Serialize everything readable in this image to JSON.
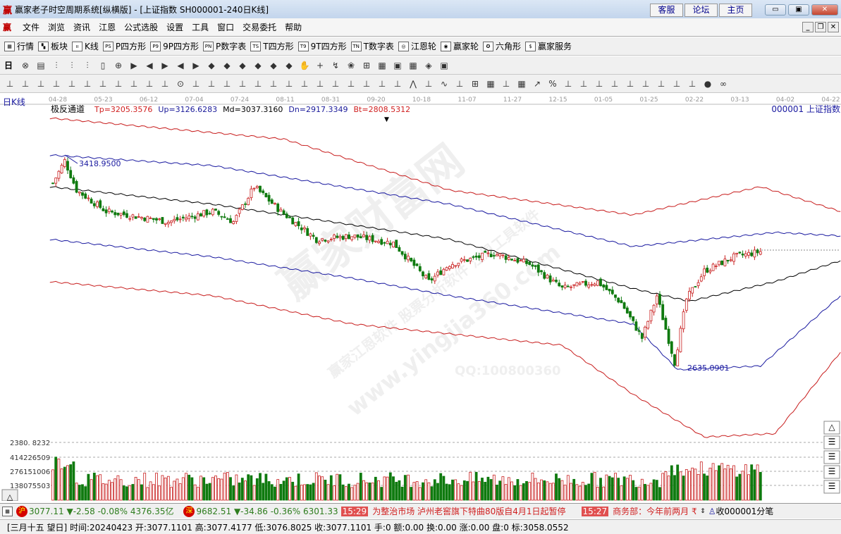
{
  "window": {
    "logo": "赢",
    "title": "赢家老子时空周期系统[纵横版] - [上证指数  SH000001-240日K线]",
    "links": [
      "客服",
      "论坛",
      "主页"
    ],
    "controls": [
      "min",
      "max",
      "close"
    ]
  },
  "menu": {
    "logo": "赢",
    "items": [
      "文件",
      "浏览",
      "资讯",
      "江恩",
      "公式选股",
      "设置",
      "工具",
      "窗口",
      "交易委托",
      "帮助"
    ]
  },
  "toolbar1": [
    {
      "icon": "grid-icon",
      "glyph": "▦",
      "label": "行情"
    },
    {
      "icon": "blocks-icon",
      "glyph": "▚",
      "label": "板块"
    },
    {
      "icon": "candle-icon",
      "glyph": "ıı",
      "label": "K线"
    },
    {
      "icon": "ps-icon",
      "glyph": "PS",
      "label": "P四方形"
    },
    {
      "icon": "p9-icon",
      "glyph": "P9",
      "label": "9P四方形"
    },
    {
      "icon": "pn-icon",
      "glyph": "PN",
      "label": "P数字表"
    },
    {
      "icon": "ts-icon",
      "glyph": "TS",
      "label": "T四方形"
    },
    {
      "icon": "t9-icon",
      "glyph": "T9",
      "label": "9T四方形"
    },
    {
      "icon": "tn-icon",
      "glyph": "TN",
      "label": "T数字表"
    },
    {
      "icon": "gann-wheel-icon",
      "glyph": "◎",
      "label": "江恩轮"
    },
    {
      "icon": "yingjia-wheel-icon",
      "glyph": "◉",
      "label": "赢家轮"
    },
    {
      "icon": "hexagon-icon",
      "glyph": "✪",
      "label": "六角形"
    },
    {
      "icon": "dollar-icon",
      "glyph": "$",
      "label": "赢家服务"
    }
  ],
  "toolbar2": {
    "period": "日",
    "glyphs": [
      "⊗",
      "▤",
      "⫶",
      "⫶",
      "⫶",
      "▯",
      "⊕",
      "▶",
      "◀",
      "▶",
      "◀",
      "▶",
      "◆",
      "◆",
      "◆",
      "◆",
      "◆",
      "◆",
      "✋",
      "+",
      "↯",
      "❀",
      "⊞",
      "▦",
      "▣",
      "▦",
      "◈",
      "▣"
    ]
  },
  "toolbar3": {
    "glyphs": [
      "⊥",
      "⊥",
      "⊥",
      "⊥",
      "⊥",
      "⊥",
      "⊥",
      "⊥",
      "⊥",
      "⊥",
      "⊥",
      "⊙",
      "⊥",
      "⊥",
      "⊥",
      "⊥",
      "⊥",
      "⊥",
      "⊥",
      "⊥",
      "⊥",
      "⊥",
      "⊥",
      "⊥",
      "⊥",
      "⊥",
      "⋀",
      "⊥",
      "∿",
      "⊥",
      "⊞",
      "▦",
      "⊥",
      "▦",
      "↗",
      "%",
      "⊥",
      "⊥",
      "⊥",
      "⊥",
      "⊥",
      "⊥",
      "⊥",
      "⊥",
      "⊥",
      "●",
      "∞"
    ]
  },
  "chart": {
    "period_label": "日K线",
    "indicator_name": "极反通道",
    "indicator_values": [
      {
        "text": "Tp=3205.3576",
        "color": "#d02020"
      },
      {
        "text": "Up=3126.6283",
        "color": "#1a1a9a"
      },
      {
        "text": "Md=3037.3160",
        "color": "#000000"
      },
      {
        "text": "Dn=2917.3349",
        "color": "#1a1a9a"
      },
      {
        "text": "Bt=2808.5312",
        "color": "#d02020"
      }
    ],
    "symbol": "000001  上证指数",
    "date_ticks": [
      "04-28",
      "05-23",
      "06-12",
      "07-04",
      "07-24",
      "08-11",
      "08-31",
      "09-20",
      "10-18",
      "11-07",
      "11-27",
      "12-15",
      "01-05",
      "01-25",
      "02-22",
      "03-13",
      "04-02",
      "04-22"
    ],
    "high_label": "3418.9500",
    "low_label": "2635.0901",
    "volume_axis": [
      "2380. 8232",
      "414226509",
      "276151006",
      "138075503"
    ],
    "watermark": {
      "brand": "赢家财富网",
      "url": "www.yingjia360.com",
      "tagline": "赢家江恩软件 股票分析软件 江恩工具软件",
      "qq": "QQ:100800360"
    },
    "colors": {
      "up": "#c81e1e",
      "down": "#0f7a0f",
      "top": "#c81e1e",
      "upper": "#1a1aa0",
      "mid": "#000000"
    }
  },
  "chart_data": {
    "type": "candlestick",
    "bar_count": 240,
    "y_range": [
      2360,
      3600
    ],
    "close_path": [
      [
        0,
        3334
      ],
      [
        4,
        3419
      ],
      [
        8,
        3308
      ],
      [
        18,
        3228
      ],
      [
        39,
        3189
      ],
      [
        54,
        3228
      ],
      [
        61,
        3189
      ],
      [
        68,
        3321
      ],
      [
        77,
        3228
      ],
      [
        89,
        3123
      ],
      [
        101,
        3136
      ],
      [
        115,
        3109
      ],
      [
        127,
        2964
      ],
      [
        134,
        3030
      ],
      [
        149,
        3070
      ],
      [
        161,
        3030
      ],
      [
        172,
        2938
      ],
      [
        184,
        2964
      ],
      [
        192,
        2884
      ],
      [
        199,
        2752
      ],
      [
        204,
        2911
      ],
      [
        210,
        2660
      ],
      [
        214,
        2898
      ],
      [
        220,
        3004
      ],
      [
        230,
        3057
      ],
      [
        239,
        3077
      ]
    ],
    "bands": {
      "top": [
        [
          -1,
          3579
        ],
        [
          78,
          3500
        ],
        [
          134,
          3308
        ],
        [
          196,
          3215
        ],
        [
          239,
          3321
        ],
        [
          266,
          3228
        ]
      ],
      "upper": [
        [
          -1,
          3440
        ],
        [
          54,
          3400
        ],
        [
          134,
          3255
        ],
        [
          196,
          3096
        ],
        [
          244,
          3149
        ],
        [
          266,
          3136
        ]
      ],
      "mid": [
        [
          -1,
          3321
        ],
        [
          54,
          3255
        ],
        [
          134,
          3123
        ],
        [
          196,
          2938
        ],
        [
          215,
          2890
        ],
        [
          244,
          2964
        ],
        [
          266,
          3043
        ]
      ],
      "lower": [
        [
          -1,
          3123
        ],
        [
          54,
          3057
        ],
        [
          101,
          2977
        ],
        [
          134,
          2911
        ],
        [
          196,
          2805
        ],
        [
          211,
          2633
        ],
        [
          239,
          2647
        ],
        [
          266,
          2911
        ]
      ],
      "bottom": [
        [
          -1,
          2964
        ],
        [
          54,
          2911
        ],
        [
          101,
          2805
        ],
        [
          172,
          2725
        ],
        [
          196,
          2540
        ],
        [
          220,
          2380
        ],
        [
          244,
          2393
        ],
        [
          266,
          2699
        ]
      ]
    },
    "high": 3418.95,
    "low": 2635.0901
  },
  "ticker": {
    "sh": {
      "badge": "沪",
      "price": "3077.11",
      "change": "-2.58",
      "pct": "-0.08%",
      "amount": "4376.35亿"
    },
    "sz": {
      "badge": "深",
      "price": "9682.51",
      "change": "-34.86",
      "pct": "-0.36%",
      "amount": "6301.33"
    },
    "news": [
      {
        "time": "15:29",
        "text": "为整治市场 泸州老窖旗下特曲80版自4月1日起暂停"
      },
      {
        "time": "15:27",
        "text": "商务部：今年前两月 ₹"
      }
    ],
    "right": "收000001分笔"
  },
  "status": "[三月十五  望日] 时间:20240423 开:3077.1101 高:3077.4177 低:3076.8025 收:3077.1101 手:0 额:0.00 换:0.00 涨:0.00 盘:0 标:3058.0552"
}
